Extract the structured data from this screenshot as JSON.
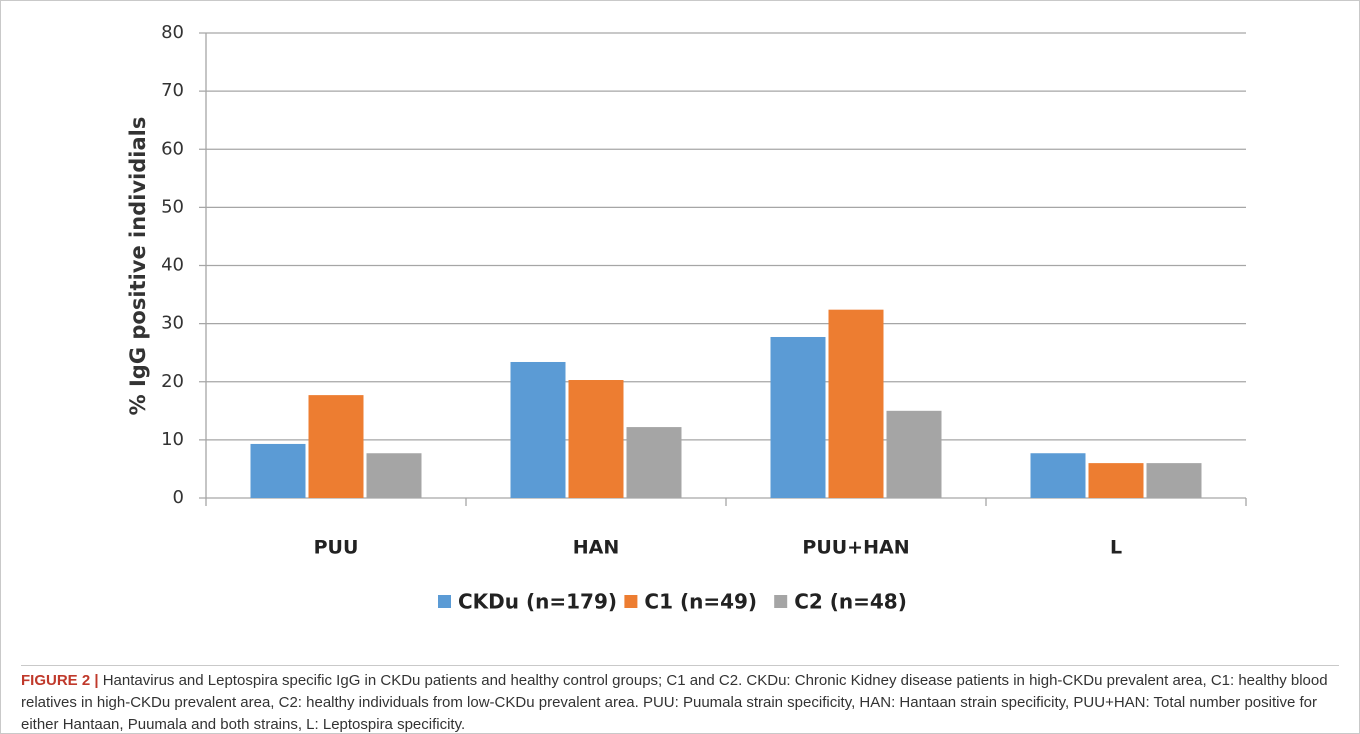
{
  "chart_data": {
    "type": "bar",
    "ylabel": "% IgG positive individials",
    "categories": [
      "PUU",
      "HAN",
      "PUU+HAN",
      "L"
    ],
    "series": [
      {
        "name": "CKDu (n=179)",
        "color": "#5b9bd5",
        "values": [
          9.3,
          23.4,
          27.7,
          7.7
        ]
      },
      {
        "name": "C1 (n=49)",
        "color": "#ed7d31",
        "values": [
          17.7,
          20.3,
          32.4,
          6.0
        ]
      },
      {
        "name": "C2 (n=48)",
        "color": "#a5a5a5",
        "values": [
          7.7,
          12.2,
          15.0,
          6.0
        ]
      }
    ],
    "ylim": [
      0,
      80
    ],
    "yticks": [
      0,
      10,
      20,
      30,
      40,
      50,
      60,
      70,
      80
    ],
    "grid": true,
    "legend": "bottom"
  },
  "caption": {
    "label": "FIGURE 2 |",
    "text": "Hantavirus and Leptospira specific IgG in CKDu patients and healthy control groups; C1 and C2. CKDu: Chronic Kidney disease patients in high-CKDu prevalent area, C1: healthy blood relatives in high-CKDu prevalent area, C2: healthy individuals from low-CKDu prevalent area. PUU: Puumala strain specificity, HAN: Hantaan strain specificity, PUU+HAN: Total number positive for either Hantaan, Puumala and both strains, L: Leptospira specificity."
  }
}
